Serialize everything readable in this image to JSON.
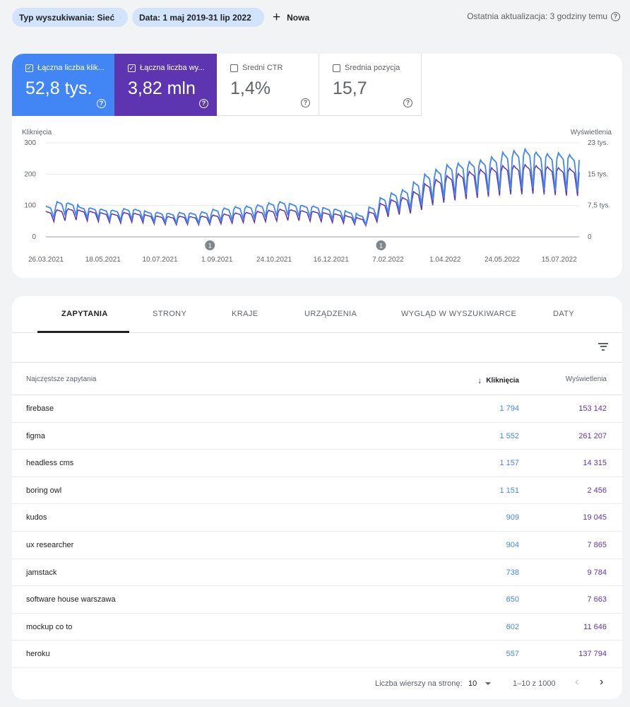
{
  "filters": {
    "search_type": "Typ wyszukiwania: Sieć",
    "date": "Data: 1 maj 2019-31 lip 2022",
    "new_label": "Nowa",
    "last_update": "Ostatnia aktualizacja: 3 godziny temu"
  },
  "metrics": [
    {
      "label": "Łączna liczba klik...",
      "value": "52,8 tys.",
      "checked": true,
      "color": "#4285f4"
    },
    {
      "label": "Łączna liczba wy...",
      "value": "3,82 mln",
      "checked": true,
      "color": "#5e35b1"
    },
    {
      "label": "Średni CTR",
      "value": "1,4%",
      "checked": false
    },
    {
      "label": "Średnia pozycja",
      "value": "15,7",
      "checked": false
    }
  ],
  "annotation_marker": "1",
  "chart_data": {
    "type": "line",
    "y_left_title": "Kliknięcia",
    "y_right_title": "Wyświetlenia",
    "y_left_ticks": [
      "300",
      "200",
      "100",
      "0"
    ],
    "y_right_ticks": [
      "23 tys.",
      "15 tys.",
      "7,5 tys.",
      "0"
    ],
    "ylim_left": [
      0,
      300
    ],
    "ylim_right": [
      0,
      23000
    ],
    "x_ticks": [
      "26.03.2021",
      "18.05.2021",
      "10.07.2021",
      "1.09.2021",
      "24.10.2021",
      "16.12.2021",
      "7.02.2022",
      "1.04.2022",
      "24.05.2022",
      "15.07.2022"
    ],
    "annotations": [
      {
        "date": "1.09.2021",
        "label": "1"
      },
      {
        "date": "7.02.2022",
        "label": "1"
      }
    ],
    "grid": true,
    "series": [
      {
        "name": "Kliknięcia",
        "color": "#4285f4",
        "axis": "left",
        "weekly_avg": [
          60,
          68,
          72,
          65,
          62,
          58,
          55,
          60,
          56,
          52,
          50,
          48,
          50,
          48,
          50,
          52,
          55,
          58,
          60,
          62,
          65,
          68,
          66,
          64,
          62,
          58,
          55,
          50,
          44,
          60,
          80,
          90,
          95,
          110,
          130,
          140,
          150,
          155,
          160,
          165,
          170,
          175,
          175,
          178,
          175,
          172,
          170,
          168
        ],
        "weekly_peak": [
          98,
          112,
          108,
          95,
          92,
          88,
          85,
          90,
          88,
          80,
          78,
          75,
          78,
          76,
          80,
          88,
          92,
          96,
          98,
          102,
          108,
          112,
          105,
          100,
          98,
          92,
          88,
          80,
          70,
          95,
          125,
          140,
          150,
          175,
          200,
          215,
          230,
          235,
          240,
          245,
          255,
          270,
          275,
          280,
          270,
          265,
          268,
          262
        ],
        "weekly_low": [
          45,
          50,
          52,
          48,
          45,
          40,
          38,
          42,
          40,
          35,
          32,
          30,
          32,
          30,
          32,
          35,
          38,
          40,
          42,
          45,
          48,
          50,
          48,
          46,
          44,
          40,
          38,
          32,
          25,
          40,
          55,
          60,
          62,
          70,
          80,
          85,
          90,
          92,
          95,
          98,
          100,
          100,
          102,
          100,
          98,
          96,
          95,
          94
        ]
      },
      {
        "name": "Wyświetlenia",
        "color": "#5e35b1",
        "axis": "right",
        "weekly_avg": [
          4800,
          5100,
          5300,
          5000,
          4800,
          4500,
          4300,
          4600,
          4400,
          4100,
          3900,
          3800,
          3900,
          3800,
          3900,
          4100,
          4300,
          4500,
          4600,
          4800,
          5000,
          5200,
          5100,
          4900,
          4800,
          4500,
          4300,
          3900,
          3500,
          4700,
          6300,
          7000,
          7400,
          8500,
          10000,
          10800,
          11500,
          11900,
          12300,
          12700,
          13000,
          13400,
          13400,
          13600,
          13400,
          13200,
          13000,
          12900
        ]
      }
    ]
  },
  "tabs": [
    "ZAPYTANIA",
    "STRONY",
    "KRAJE",
    "URZĄDZENIA",
    "WYGLĄD W WYSZUKIWARCE",
    "DATY"
  ],
  "table": {
    "col_query": "Najczęstsze zapytania",
    "col_clicks": "Kliknięcia",
    "col_impressions": "Wyświetlenia",
    "rows": [
      {
        "query": "firebase",
        "clicks": "1 794",
        "impressions": "153 142"
      },
      {
        "query": "figma",
        "clicks": "1 552",
        "impressions": "261 207"
      },
      {
        "query": "headless cms",
        "clicks": "1 157",
        "impressions": "14 315"
      },
      {
        "query": "boring owl",
        "clicks": "1 151",
        "impressions": "2 456"
      },
      {
        "query": "kudos",
        "clicks": "909",
        "impressions": "19 045"
      },
      {
        "query": "ux researcher",
        "clicks": "904",
        "impressions": "7 865"
      },
      {
        "query": "jamstack",
        "clicks": "738",
        "impressions": "9 784"
      },
      {
        "query": "software house warszawa",
        "clicks": "650",
        "impressions": "7 663"
      },
      {
        "query": "mockup co to",
        "clicks": "602",
        "impressions": "11 646"
      },
      {
        "query": "heroku",
        "clicks": "557",
        "impressions": "137 794"
      }
    ]
  },
  "pagination": {
    "rows_per_page_label": "Liczba wierszy na stronę:",
    "rows_per_page": "10",
    "range": "1–10 z 1000"
  }
}
